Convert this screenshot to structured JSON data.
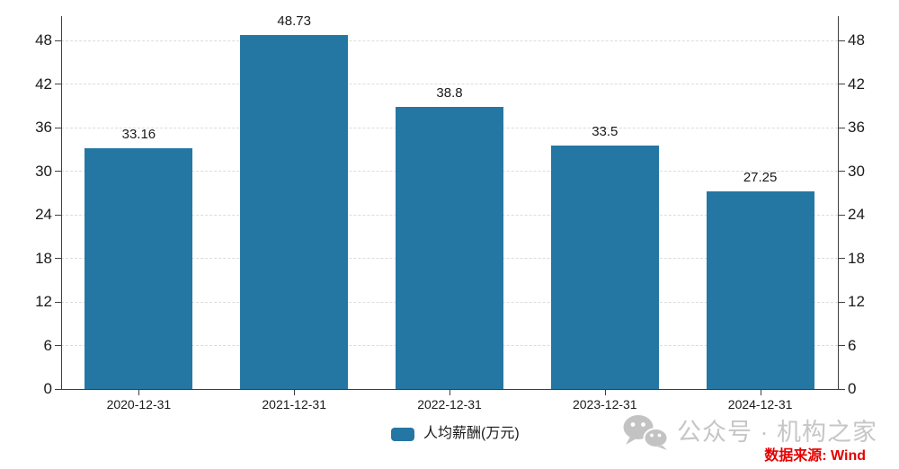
{
  "chart_data": {
    "type": "bar",
    "title": "",
    "categories": [
      "2020-12-31",
      "2021-12-31",
      "2022-12-31",
      "2023-12-31",
      "2024-12-31"
    ],
    "series": [
      {
        "name": "人均薪酬(万元)",
        "values": [
          33.16,
          48.73,
          38.8,
          33.5,
          27.25
        ],
        "labels": [
          "33.16",
          "48.73",
          "38.8",
          "33.5",
          "27.25"
        ],
        "color": "#2577A3"
      }
    ],
    "xlabel": "",
    "ylabel": "",
    "yticks": [
      0,
      6,
      12,
      18,
      24,
      30,
      36,
      42,
      48
    ],
    "ylim": [
      0,
      51.3
    ],
    "grid": "horizontal-dashed",
    "y_axis_sides": "both",
    "legend_position": "bottom-center"
  },
  "legend": {
    "label": "人均薪酬(万元)"
  },
  "watermark": {
    "icon": "wechat-icon",
    "text": "公众号 · 机构之家"
  },
  "source": {
    "label": "数据来源: Wind"
  },
  "colors": {
    "bar": "#2577A3",
    "grid": "#DCDCDC",
    "axis": "#3F3F3F",
    "text": "#1A1A1A",
    "watermark": "#C6C6C6",
    "source": "#E60000"
  }
}
